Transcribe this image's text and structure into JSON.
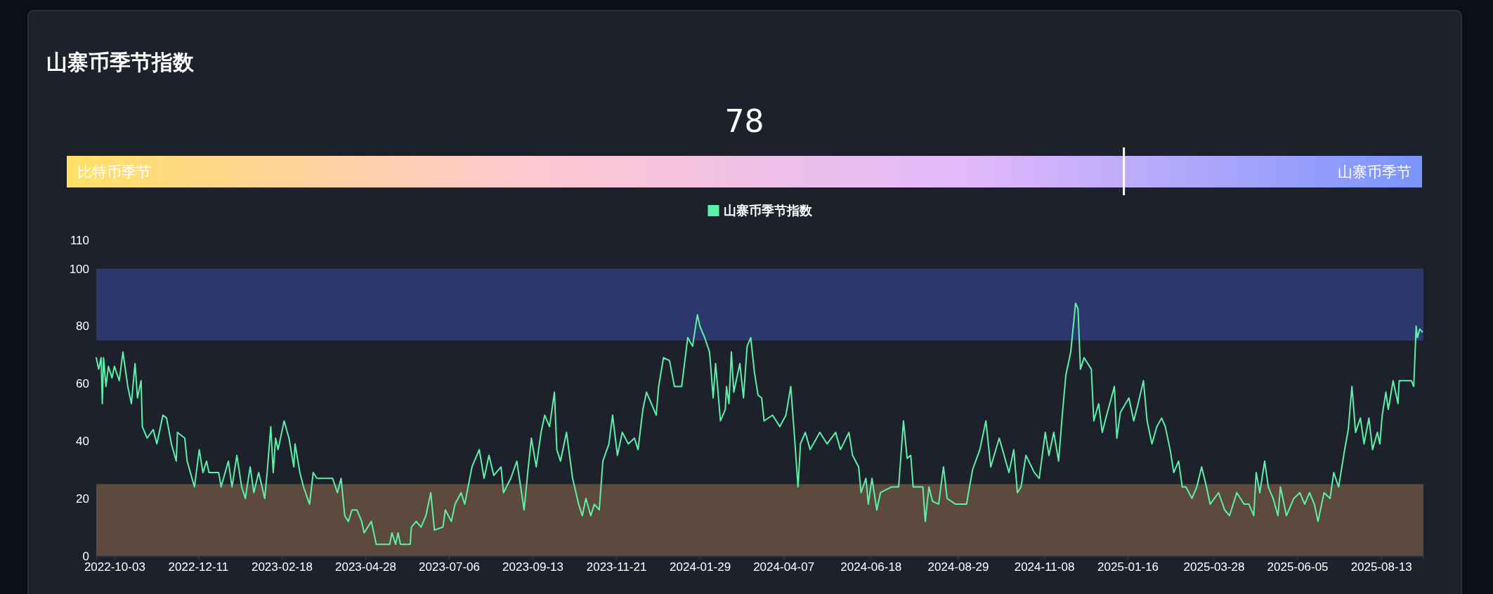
{
  "chart_data": [
    {
      "type": "other",
      "title": "山寨币季节指数",
      "annotations": [
        "比特币季节",
        "山寨币季节"
      ],
      "values": [
        78
      ],
      "data_labels": true
    },
    {
      "type": "line",
      "legend": "top",
      "ylim": [
        0,
        110
      ],
      "yticks": [
        0,
        20,
        40,
        60,
        80,
        100,
        110
      ],
      "xlim": [
        "2022-09-18",
        "2025-09-17"
      ],
      "xticks": [
        "2022-10-03",
        "2022-12-11",
        "2023-02-18",
        "2023-04-28",
        "2023-07-06",
        "2023-09-13",
        "2023-11-21",
        "2024-01-29",
        "2024-04-07",
        "2024-06-18",
        "2024-08-29",
        "2024-11-08",
        "2025-01-16",
        "2025-03-28",
        "2025-06-05",
        "2025-08-13"
      ],
      "bands": [
        {
          "axis": "y",
          "from": 75,
          "to": 100,
          "color": "#2c376b"
        },
        {
          "axis": "y",
          "from": 0,
          "to": 25,
          "color": "#5d4a3e"
        }
      ],
      "series": [
        {
          "name": "山寨币季节指数",
          "color": "#5cf0a8",
          "x": [
            "2022-09-18",
            "2022-09-20",
            "2022-09-22",
            "2022-09-23",
            "2022-09-24",
            "2022-09-26",
            "2022-09-28",
            "2022-10-01",
            "2022-10-03",
            "2022-10-07",
            "2022-10-10",
            "2022-10-14",
            "2022-10-17",
            "2022-10-20",
            "2022-10-22",
            "2022-10-25",
            "2022-10-26",
            "2022-10-30",
            "2022-11-04",
            "2022-11-07",
            "2022-11-12",
            "2022-11-15",
            "2022-11-19",
            "2022-11-23",
            "2022-11-24",
            "2022-11-30",
            "2022-12-02",
            "2022-12-08",
            "2022-12-12",
            "2022-12-15",
            "2022-12-18",
            "2022-12-20",
            "2022-12-28",
            "2022-12-30",
            "2023-01-05",
            "2023-01-08",
            "2023-01-12",
            "2023-01-16",
            "2023-01-19",
            "2023-01-23",
            "2023-01-26",
            "2023-01-30",
            "2023-02-04",
            "2023-02-06",
            "2023-02-09",
            "2023-02-11",
            "2023-02-13",
            "2023-02-15",
            "2023-02-20",
            "2023-02-24",
            "2023-02-28",
            "2023-03-01",
            "2023-03-05",
            "2023-03-08",
            "2023-03-13",
            "2023-03-16",
            "2023-03-19",
            "2023-04-01",
            "2023-04-05",
            "2023-04-08",
            "2023-04-11",
            "2023-04-14",
            "2023-04-17",
            "2023-04-21",
            "2023-04-25",
            "2023-04-27",
            "2023-05-03",
            "2023-05-07",
            "2023-05-18",
            "2023-05-20",
            "2023-05-23",
            "2023-05-25",
            "2023-05-27",
            "2023-06-04",
            "2023-06-05",
            "2023-06-09",
            "2023-06-13",
            "2023-06-17",
            "2023-06-21",
            "2023-06-24",
            "2023-07-01",
            "2023-07-03",
            "2023-07-08",
            "2023-07-11",
            "2023-07-16",
            "2023-07-19",
            "2023-07-25",
            "2023-07-31",
            "2023-08-04",
            "2023-08-08",
            "2023-08-12",
            "2023-08-18",
            "2023-08-20",
            "2023-08-26",
            "2023-08-31",
            "2023-09-06",
            "2023-09-09",
            "2023-09-12",
            "2023-09-16",
            "2023-09-20",
            "2023-09-23",
            "2023-09-27",
            "2023-10-01",
            "2023-10-03",
            "2023-10-06",
            "2023-10-11",
            "2023-10-16",
            "2023-10-21",
            "2023-10-24",
            "2023-10-27",
            "2023-10-31",
            "2023-11-03",
            "2023-11-07",
            "2023-11-10",
            "2023-11-15",
            "2023-11-18",
            "2023-11-22",
            "2023-11-26",
            "2023-12-01",
            "2023-12-06",
            "2023-12-09",
            "2023-12-13",
            "2023-12-16",
            "2023-12-20",
            "2023-12-24",
            "2023-12-26",
            "2023-12-30",
            "2024-01-04",
            "2024-01-08",
            "2024-01-14",
            "2024-01-19",
            "2024-01-23",
            "2024-01-27",
            "2024-01-29",
            "2024-02-02",
            "2024-02-06",
            "2024-02-09",
            "2024-02-11",
            "2024-02-15",
            "2024-02-19",
            "2024-02-20",
            "2024-02-22",
            "2024-02-24",
            "2024-02-26",
            "2024-03-02",
            "2024-03-05",
            "2024-03-08",
            "2024-03-11",
            "2024-03-14",
            "2024-03-17",
            "2024-03-20",
            "2024-03-22",
            "2024-03-29",
            "2024-04-04",
            "2024-04-09",
            "2024-04-13",
            "2024-04-16",
            "2024-04-19",
            "2024-04-21",
            "2024-04-25",
            "2024-04-29",
            "2024-05-07",
            "2024-05-13",
            "2024-05-20",
            "2024-05-24",
            "2024-05-31",
            "2024-06-03",
            "2024-06-08",
            "2024-06-10",
            "2024-06-14",
            "2024-06-16",
            "2024-06-19",
            "2024-06-23",
            "2024-06-26",
            "2024-07-05",
            "2024-07-11",
            "2024-07-15",
            "2024-07-18",
            "2024-07-21",
            "2024-07-23",
            "2024-07-31",
            "2024-08-02",
            "2024-08-05",
            "2024-08-08",
            "2024-08-13",
            "2024-08-17",
            "2024-08-20",
            "2024-08-27",
            "2024-09-05",
            "2024-09-10",
            "2024-09-16",
            "2024-09-21",
            "2024-09-25",
            "2024-10-02",
            "2024-10-06",
            "2024-10-10",
            "2024-10-14",
            "2024-10-17",
            "2024-10-20",
            "2024-10-24",
            "2024-10-31",
            "2024-11-04",
            "2024-11-09",
            "2024-11-12",
            "2024-11-16",
            "2024-11-20",
            "2024-11-23",
            "2024-11-26",
            "2024-11-30",
            "2024-12-04",
            "2024-12-06",
            "2024-12-08",
            "2024-12-11",
            "2024-12-17",
            "2024-12-19",
            "2024-12-23",
            "2024-12-26",
            "2024-12-29",
            "2025-01-05",
            "2025-01-07",
            "2025-01-10",
            "2025-01-17",
            "2025-01-21",
            "2025-01-24",
            "2025-01-29",
            "2025-02-01",
            "2025-02-05",
            "2025-02-09",
            "2025-02-13",
            "2025-02-16",
            "2025-02-20",
            "2025-02-23",
            "2025-02-27",
            "2025-03-02",
            "2025-03-05",
            "2025-03-10",
            "2025-03-14",
            "2025-03-18",
            "2025-03-22",
            "2025-03-25",
            "2025-04-01",
            "2025-04-06",
            "2025-04-10",
            "2025-04-16",
            "2025-04-22",
            "2025-04-26",
            "2025-04-30",
            "2025-05-02",
            "2025-05-05",
            "2025-05-09",
            "2025-05-12",
            "2025-05-16",
            "2025-05-20",
            "2025-05-22",
            "2025-05-27",
            "2025-06-02",
            "2025-06-07",
            "2025-06-11",
            "2025-06-15",
            "2025-06-19",
            "2025-06-22",
            "2025-06-27",
            "2025-07-02",
            "2025-07-05",
            "2025-07-09",
            "2025-07-14",
            "2025-07-17",
            "2025-07-20",
            "2025-07-23",
            "2025-07-27",
            "2025-07-30",
            "2025-08-03",
            "2025-08-06",
            "2025-08-10",
            "2025-08-12",
            "2025-08-14",
            "2025-08-17",
            "2025-08-19",
            "2025-08-23",
            "2025-08-27",
            "2025-08-28",
            "2025-09-07",
            "2025-09-09",
            "2025-09-11",
            "2025-09-12",
            "2025-09-14",
            "2025-09-16"
          ],
          "values": [
            69,
            65,
            69,
            53,
            69,
            59,
            66,
            62,
            66,
            61,
            71,
            59,
            53,
            67,
            55,
            61,
            45,
            41,
            44,
            39,
            49,
            48,
            39,
            33,
            43,
            41,
            33,
            24,
            37,
            29,
            33,
            29,
            29,
            24,
            33,
            24,
            35,
            24,
            20,
            31,
            22,
            29,
            20,
            29,
            45,
            29,
            41,
            37,
            47,
            41,
            31,
            39,
            29,
            24,
            18,
            29,
            27,
            27,
            22,
            27,
            14,
            12,
            16,
            16,
            12,
            8,
            12,
            4,
            4,
            8,
            4,
            8,
            4,
            4,
            10,
            12,
            10,
            14,
            22,
            9,
            10,
            16,
            12,
            18,
            22,
            18,
            31,
            37,
            27,
            35,
            28,
            31,
            22,
            27,
            33,
            16,
            29,
            41,
            31,
            43,
            49,
            45,
            57,
            37,
            33,
            43,
            27,
            18,
            14,
            20,
            14,
            18,
            16,
            33,
            39,
            49,
            35,
            43,
            39,
            41,
            37,
            51,
            57,
            53,
            49,
            59,
            69,
            68,
            59,
            59,
            76,
            73,
            84,
            80,
            76,
            71,
            55,
            67,
            47,
            51,
            59,
            53,
            71,
            57,
            67,
            55,
            73,
            76,
            64,
            56,
            55,
            47,
            49,
            45,
            49,
            59,
            42,
            24,
            39,
            43,
            37,
            43,
            39,
            43,
            37,
            43,
            35,
            31,
            22,
            27,
            18,
            27,
            16,
            22,
            24,
            24,
            47,
            34,
            35,
            24,
            24,
            12,
            24,
            19,
            18,
            31,
            20,
            18,
            18,
            30,
            37,
            47,
            31,
            41,
            35,
            29,
            37,
            22,
            24,
            35,
            29,
            27,
            43,
            35,
            43,
            33,
            49,
            63,
            71,
            88,
            86,
            65,
            69,
            65,
            47,
            53,
            43,
            48,
            59,
            41,
            50,
            55,
            47,
            52,
            61,
            47,
            39,
            45,
            48,
            45,
            37,
            29,
            33,
            24,
            24,
            20,
            24,
            31,
            24,
            18,
            22,
            16,
            14,
            22,
            18,
            18,
            14,
            29,
            22,
            33,
            24,
            20,
            14,
            24,
            14,
            20,
            22,
            18,
            22,
            18,
            12,
            22,
            20,
            29,
            24,
            37,
            44,
            59,
            43,
            48,
            39,
            48,
            37,
            43,
            39,
            49,
            57,
            51,
            61,
            53,
            61,
            61,
            59,
            80,
            76,
            79,
            78
          ]
        }
      ]
    }
  ]
}
